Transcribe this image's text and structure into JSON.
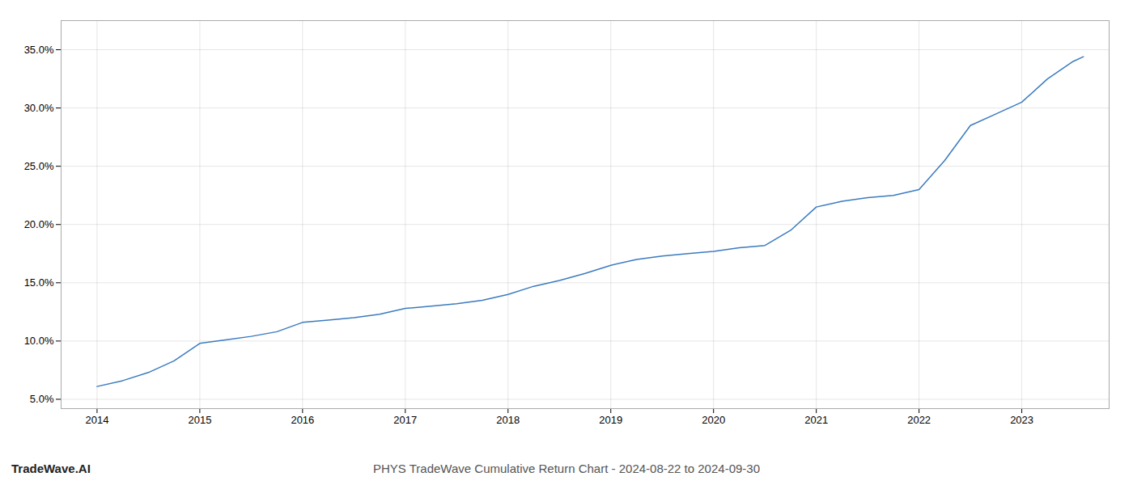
{
  "chart_data": {
    "type": "line",
    "title": "PHYS TradeWave Cumulative Return Chart - 2024-08-22 to 2024-09-30",
    "annotations": [
      "TradeWave.AI"
    ],
    "color": "#3a7bbf",
    "grid": true,
    "x": [
      2014.0,
      2014.25,
      2014.5,
      2014.75,
      2015.0,
      2015.25,
      2015.5,
      2015.75,
      2016.0,
      2016.25,
      2016.5,
      2016.75,
      2017.0,
      2017.25,
      2017.5,
      2017.75,
      2018.0,
      2018.25,
      2018.5,
      2018.75,
      2019.0,
      2019.25,
      2019.5,
      2019.75,
      2020.0,
      2020.25,
      2020.5,
      2020.75,
      2021.0,
      2021.25,
      2021.5,
      2021.75,
      2022.0,
      2022.25,
      2022.5,
      2022.75,
      2023.0,
      2023.25,
      2023.5,
      2023.6
    ],
    "values": [
      6.1,
      6.6,
      7.3,
      8.3,
      9.8,
      10.1,
      10.4,
      10.8,
      11.6,
      11.8,
      12.0,
      12.3,
      12.8,
      13.0,
      13.2,
      13.5,
      14.0,
      14.7,
      15.2,
      15.8,
      16.5,
      17.0,
      17.3,
      17.5,
      17.7,
      18.0,
      18.2,
      19.5,
      21.5,
      22.0,
      22.3,
      22.5,
      23.0,
      25.5,
      28.5,
      29.5,
      30.5,
      32.5,
      34.0,
      34.4
    ],
    "xlim": [
      2013.65,
      2023.85
    ],
    "xticks": [
      2014,
      2015,
      2016,
      2017,
      2018,
      2019,
      2020,
      2021,
      2022,
      2023
    ],
    "ylim": [
      4.2,
      37.5
    ],
    "yticks": [
      {
        "value": 5.0,
        "label": "5.0%"
      },
      {
        "value": 10.0,
        "label": "10.0%"
      },
      {
        "value": 15.0,
        "label": "15.0%"
      },
      {
        "value": 20.0,
        "label": "20.0%"
      },
      {
        "value": 25.0,
        "label": "25.0%"
      },
      {
        "value": 30.0,
        "label": "30.0%"
      },
      {
        "value": 35.0,
        "label": "35.0%"
      }
    ]
  }
}
